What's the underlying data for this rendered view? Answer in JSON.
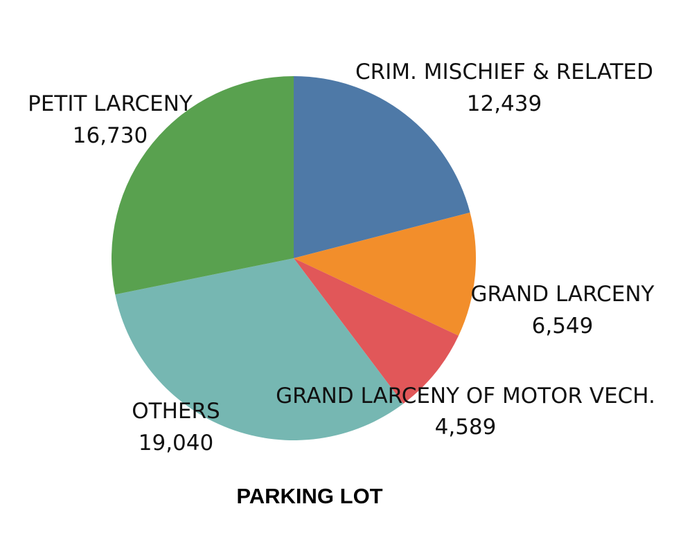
{
  "chart_data": {
    "type": "pie",
    "title": "PARKING LOT",
    "start_angle_deg": 0,
    "direction": "clockwise",
    "slices": [
      {
        "label": "CRIM. MISCHIEF & RELATED",
        "value": 12439,
        "value_text": "12,439",
        "color": "#4E79A7"
      },
      {
        "label": "GRAND LARCENY",
        "value": 6549,
        "value_text": "6,549",
        "color": "#F28E2B"
      },
      {
        "label": "GRAND LARCENY OF MOTOR VECH.",
        "value": 4589,
        "value_text": "4,589",
        "color": "#E15759"
      },
      {
        "label": "OTHERS",
        "value": 19040,
        "value_text": "19,040",
        "color": "#76B7B2"
      },
      {
        "label": "PETIT LARCENY",
        "value": 16730,
        "value_text": "16,730",
        "color": "#59A14F"
      }
    ],
    "legend": "none"
  }
}
